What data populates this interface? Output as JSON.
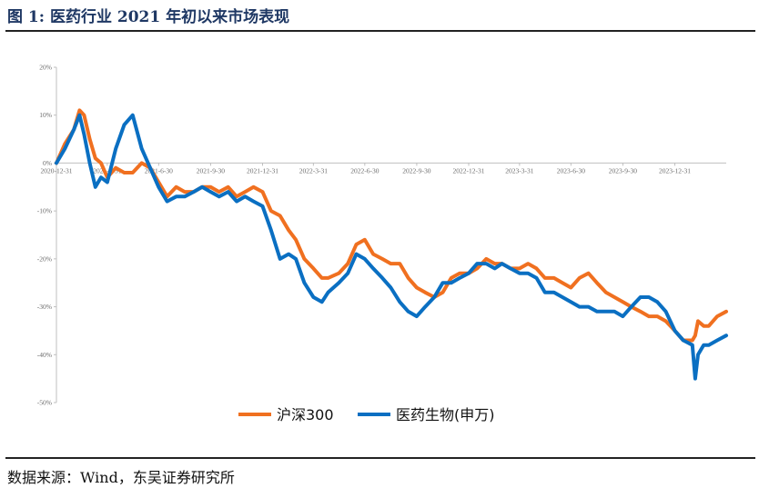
{
  "figure": {
    "title": "图 1:  医药行业 2021 年初以来市场表现",
    "source": "数据来源：Wind，东吴证券研究所"
  },
  "chart_data": {
    "type": "line",
    "yunit": "%",
    "ylim": [
      -50,
      20
    ],
    "yticks": [
      20,
      10,
      0,
      -10,
      -20,
      -30,
      -40,
      -50
    ],
    "ytick_labels": [
      "20%",
      "10%",
      "0%",
      "-10%",
      "-20%",
      "-30%",
      "-40%",
      "-50%"
    ],
    "xlim": [
      "2020-12-31",
      "2024-03-31"
    ],
    "xtick_labels": [
      "2020-12-31",
      "2021-3-31",
      "2021-6-30",
      "2021-9-30",
      "2021-12-31",
      "2022-3-31",
      "2022-6-30",
      "2022-9-30",
      "2022-12-31",
      "2023-3-31",
      "2023-6-30",
      "2023-9-30",
      "2023-12-31"
    ],
    "x": [
      "2020-12-31",
      "2021-01-15",
      "2021-01-31",
      "2021-02-10",
      "2021-02-18",
      "2021-02-28",
      "2021-03-10",
      "2021-03-20",
      "2021-03-31",
      "2021-04-15",
      "2021-04-30",
      "2021-05-15",
      "2021-05-31",
      "2021-06-15",
      "2021-06-30",
      "2021-07-15",
      "2021-07-31",
      "2021-08-15",
      "2021-08-31",
      "2021-09-15",
      "2021-09-30",
      "2021-10-15",
      "2021-10-31",
      "2021-11-15",
      "2021-11-30",
      "2021-12-15",
      "2021-12-31",
      "2022-01-15",
      "2022-01-31",
      "2022-02-15",
      "2022-02-28",
      "2022-03-15",
      "2022-03-31",
      "2022-04-15",
      "2022-04-26",
      "2022-05-15",
      "2022-05-31",
      "2022-06-15",
      "2022-06-30",
      "2022-07-15",
      "2022-07-31",
      "2022-08-15",
      "2022-08-31",
      "2022-09-15",
      "2022-09-30",
      "2022-10-15",
      "2022-10-31",
      "2022-11-15",
      "2022-11-30",
      "2022-12-15",
      "2022-12-31",
      "2023-01-15",
      "2023-01-31",
      "2023-02-15",
      "2023-02-28",
      "2023-03-15",
      "2023-03-31",
      "2023-04-15",
      "2023-04-30",
      "2023-05-15",
      "2023-05-31",
      "2023-06-15",
      "2023-06-30",
      "2023-07-15",
      "2023-07-31",
      "2023-08-15",
      "2023-08-31",
      "2023-09-15",
      "2023-09-30",
      "2023-10-15",
      "2023-10-31",
      "2023-11-15",
      "2023-11-30",
      "2023-12-15",
      "2023-12-31",
      "2024-01-15",
      "2024-01-31",
      "2024-02-05",
      "2024-02-10",
      "2024-02-20",
      "2024-02-29",
      "2024-03-15",
      "2024-03-31"
    ],
    "series": [
      {
        "name": "沪深300",
        "color": "#f07020",
        "values": [
          0,
          4,
          7,
          11,
          10,
          5,
          1,
          0,
          -3,
          -1,
          -2,
          -2,
          0,
          -1,
          -4,
          -7,
          -5,
          -6,
          -6,
          -5,
          -5,
          -6,
          -5,
          -7,
          -6,
          -5,
          -6,
          -10,
          -11,
          -14,
          -16,
          -20,
          -22,
          -24,
          -24,
          -23,
          -21,
          -17,
          -16,
          -19,
          -20,
          -21,
          -21,
          -24,
          -26,
          -27,
          -28,
          -27,
          -24,
          -23,
          -23,
          -22,
          -20,
          -21,
          -21,
          -22,
          -22,
          -21,
          -22,
          -24,
          -24,
          -25,
          -26,
          -24,
          -23,
          -25,
          -27,
          -28,
          -29,
          -30,
          -31,
          -32,
          -32,
          -33,
          -35,
          -37,
          -37,
          -36,
          -33,
          -34,
          -34,
          -32,
          -31
        ]
      },
      {
        "name": "医药生物(申万)",
        "color": "#0a6fc2",
        "values": [
          0,
          3,
          7,
          10,
          6,
          0,
          -5,
          -3,
          -4,
          3,
          8,
          10,
          3,
          -1,
          -5,
          -8,
          -7,
          -7,
          -6,
          -5,
          -6,
          -7,
          -6,
          -8,
          -7,
          -8,
          -9,
          -14,
          -20,
          -19,
          -20,
          -25,
          -28,
          -29,
          -27,
          -25,
          -23,
          -19,
          -20,
          -22,
          -24,
          -26,
          -29,
          -31,
          -32,
          -30,
          -28,
          -25,
          -25,
          -24,
          -23,
          -21,
          -21,
          -22,
          -21,
          -22,
          -23,
          -23,
          -24,
          -27,
          -27,
          -28,
          -29,
          -30,
          -30,
          -31,
          -31,
          -31,
          -32,
          -30,
          -28,
          -28,
          -29,
          -31,
          -35,
          -37,
          -38,
          -45,
          -40,
          -38,
          -38,
          -37,
          -36
        ]
      }
    ],
    "legend_position": "bottom",
    "grid": false
  }
}
